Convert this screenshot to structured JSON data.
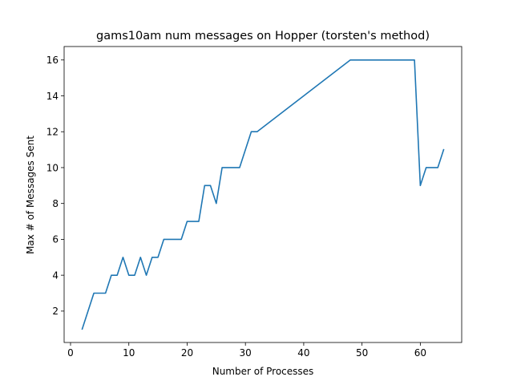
{
  "chart_data": {
    "type": "line",
    "title": "gams10am num messages on Hopper (torsten's method)",
    "xlabel": "Number of Processes",
    "ylabel": "Max # of Messages Sent",
    "xlim": [
      -1.1,
      67.1
    ],
    "ylim": [
      0.25,
      16.75
    ],
    "xticks": [
      0,
      10,
      20,
      30,
      40,
      50,
      60
    ],
    "yticks": [
      2,
      4,
      6,
      8,
      10,
      12,
      14,
      16
    ],
    "grid": false,
    "line_color": "#1f77b4",
    "series": [
      {
        "x": [
          2,
          4,
          6,
          7,
          8,
          9,
          10,
          11,
          12,
          13,
          14,
          15,
          16,
          17,
          19,
          20,
          21,
          22,
          23,
          24,
          25,
          26,
          27,
          28,
          29,
          30,
          31,
          32,
          48,
          59,
          60,
          61,
          62,
          63,
          64
        ],
        "y": [
          1,
          3,
          3,
          4,
          4,
          5,
          4,
          4,
          5,
          4,
          5,
          5,
          6,
          6,
          6,
          7,
          7,
          7,
          9,
          9,
          8,
          10,
          10,
          10,
          10,
          11,
          12,
          12,
          16,
          16,
          9,
          10,
          10,
          10,
          11
        ]
      }
    ]
  }
}
